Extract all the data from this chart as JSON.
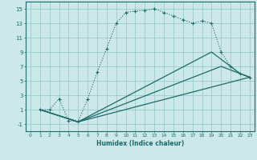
{
  "xlabel": "Humidex (Indice chaleur)",
  "bg_color": "#cce8e8",
  "grid_color": "#99cccc",
  "line_color": "#1a6b6b",
  "xlim": [
    -0.5,
    23.5
  ],
  "ylim": [
    -2,
    16
  ],
  "xtick_labels": [
    "0",
    "1",
    "2",
    "3",
    "4",
    "5",
    "6",
    "7",
    "8",
    "9",
    "10",
    "11",
    "12",
    "13",
    "14",
    "15",
    "16",
    "17",
    "18",
    "19",
    "20",
    "21",
    "22",
    "23"
  ],
  "ytick_vals": [
    -1,
    1,
    3,
    5,
    7,
    9,
    11,
    13,
    15
  ],
  "line1_x": [
    1,
    2,
    3,
    4,
    5,
    6,
    7,
    8,
    9,
    10,
    11,
    12,
    13,
    14,
    15,
    16,
    17,
    18,
    19,
    20,
    21,
    22,
    23
  ],
  "line1_y": [
    1,
    1,
    2.5,
    -0.5,
    -0.7,
    2.5,
    6.2,
    9.5,
    13,
    14.5,
    14.7,
    14.8,
    15.0,
    14.5,
    14.0,
    13.5,
    13.0,
    13.3,
    13.0,
    9.0,
    7.0,
    6.0,
    5.5
  ],
  "line2_x": [
    1,
    5,
    23
  ],
  "line2_y": [
    1,
    -0.7,
    5.5
  ],
  "line3_x": [
    1,
    5,
    20,
    22,
    23
  ],
  "line3_y": [
    1,
    -0.7,
    7.0,
    6.0,
    5.5
  ],
  "line4_x": [
    1,
    5,
    19,
    22,
    23
  ],
  "line4_y": [
    1,
    -0.7,
    9.0,
    6.0,
    5.5
  ]
}
